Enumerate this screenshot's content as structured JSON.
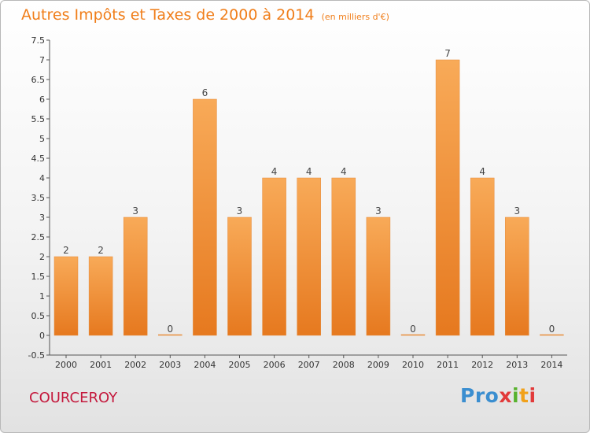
{
  "title": "Autres Impôts et Taxes de 2000 à 2014",
  "unit_note": "(en milliers d'€)",
  "commune": "COURCEROY",
  "logo": {
    "p1": "Pro",
    "p2": "x",
    "p3": "i",
    "p4": "t",
    "p5": "i"
  },
  "colors": {
    "bar": "#f08a2e",
    "bar_light": "#f7a95a",
    "title": "#f07e1a",
    "commune": "#c4183c"
  },
  "chart_data": {
    "type": "bar",
    "title": "Autres Impôts et Taxes de 2000 à 2014",
    "xlabel": "",
    "ylabel": "",
    "categories": [
      "2000",
      "2001",
      "2002",
      "2003",
      "2004",
      "2005",
      "2006",
      "2007",
      "2008",
      "2009",
      "2010",
      "2011",
      "2012",
      "2013",
      "2014"
    ],
    "values": [
      2,
      2,
      3,
      0,
      6,
      3,
      4,
      4,
      4,
      3,
      0,
      7,
      4,
      3,
      0
    ],
    "ylim": [
      -0.5,
      7.5
    ],
    "yticks": [
      "-0.5",
      "0",
      "0.5",
      "1",
      "1.5",
      "2",
      "2.5",
      "3",
      "3.5",
      "4",
      "4.5",
      "5",
      "5.5",
      "6",
      "6.5",
      "7",
      "7.5"
    ],
    "grid": false
  }
}
